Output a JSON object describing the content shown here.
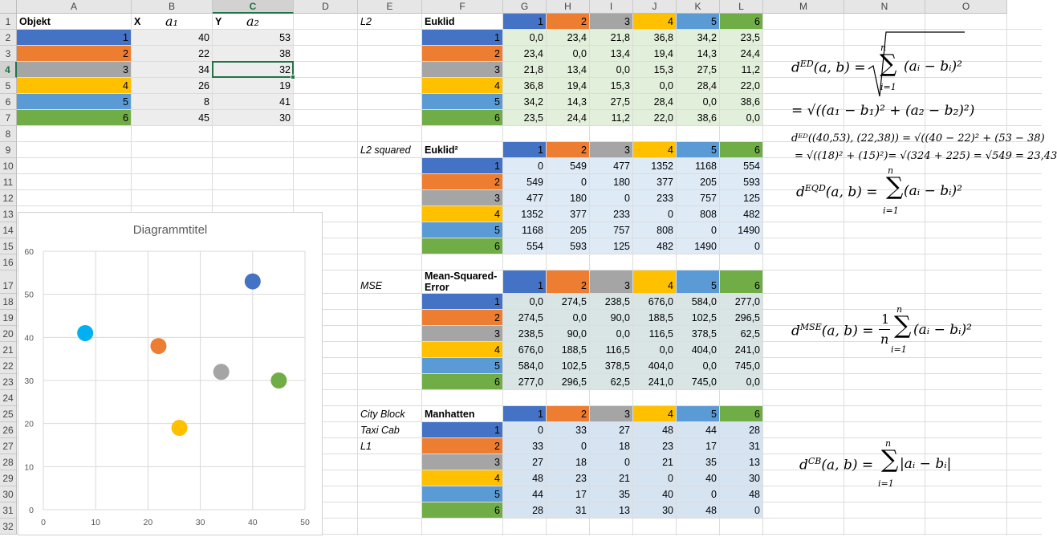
{
  "columns": [
    "A",
    "B",
    "C",
    "D",
    "E",
    "F",
    "G",
    "H",
    "I",
    "J",
    "K",
    "L",
    "M",
    "N",
    "O"
  ],
  "rows": [
    "1",
    "2",
    "3",
    "4",
    "5",
    "6",
    "7",
    "8",
    "9",
    "10",
    "11",
    "12",
    "13",
    "14",
    "15",
    "16",
    "17",
    "18",
    "19",
    "20",
    "21",
    "22",
    "23",
    "24",
    "25",
    "26",
    "27",
    "28",
    "29",
    "30",
    "31",
    "32"
  ],
  "selected": {
    "column": "C",
    "row": "4"
  },
  "colors": {
    "c1": "#4472c4",
    "c2": "#ed7d31",
    "c3": "#a5a5a5",
    "c4": "#ffc000",
    "c5": "#5b9bd5",
    "c6": "#70ad47",
    "grey_fill": "#ededed",
    "euklid_fill": "#e2efda",
    "euklid2_fill": "#deebf7",
    "mse_fill": "#d9e5e5",
    "manhattan_fill": "#d6e4f2",
    "selection": "#217346"
  },
  "objects_table": {
    "header": {
      "objekt": "Objekt",
      "x": "X",
      "a1": "a₁",
      "y": "Y",
      "a2": "a₂"
    },
    "rows": [
      {
        "id": "1",
        "x": "40",
        "y": "53"
      },
      {
        "id": "2",
        "x": "22",
        "y": "38"
      },
      {
        "id": "3",
        "x": "34",
        "y": "32"
      },
      {
        "id": "4",
        "x": "26",
        "y": "19"
      },
      {
        "id": "5",
        "x": "8",
        "y": "41"
      },
      {
        "id": "6",
        "x": "45",
        "y": "30"
      }
    ]
  },
  "matrices": [
    {
      "key": "euklid",
      "label": "L2",
      "extra_labels": [],
      "title": "Euklid",
      "headers": [
        "1",
        "2",
        "3",
        "4",
        "5",
        "6"
      ],
      "values": [
        [
          "0,0",
          "23,4",
          "21,8",
          "36,8",
          "34,2",
          "23,5"
        ],
        [
          "23,4",
          "0,0",
          "13,4",
          "19,4",
          "14,3",
          "24,4"
        ],
        [
          "21,8",
          "13,4",
          "0,0",
          "15,3",
          "27,5",
          "11,2"
        ],
        [
          "36,8",
          "19,4",
          "15,3",
          "0,0",
          "28,4",
          "22,0"
        ],
        [
          "34,2",
          "14,3",
          "27,5",
          "28,4",
          "0,0",
          "38,6"
        ],
        [
          "23,5",
          "24,4",
          "11,2",
          "22,0",
          "38,6",
          "0,0"
        ]
      ]
    },
    {
      "key": "euklid2",
      "label": "L2 squared",
      "extra_labels": [],
      "title": "Euklid²",
      "headers": [
        "1",
        "2",
        "3",
        "4",
        "5",
        "6"
      ],
      "values": [
        [
          "0",
          "549",
          "477",
          "1352",
          "1168",
          "554"
        ],
        [
          "549",
          "0",
          "180",
          "377",
          "205",
          "593"
        ],
        [
          "477",
          "180",
          "0",
          "233",
          "757",
          "125"
        ],
        [
          "1352",
          "377",
          "233",
          "0",
          "808",
          "482"
        ],
        [
          "1168",
          "205",
          "757",
          "808",
          "0",
          "1490"
        ],
        [
          "554",
          "593",
          "125",
          "482",
          "1490",
          "0"
        ]
      ]
    },
    {
      "key": "mse",
      "label": "MSE",
      "extra_labels": [],
      "title": "Mean-Squared-",
      "title2": "Error",
      "headers": [
        "1",
        "2",
        "3",
        "4",
        "5",
        "6"
      ],
      "values": [
        [
          "0,0",
          "274,5",
          "238,5",
          "676,0",
          "584,0",
          "277,0"
        ],
        [
          "274,5",
          "0,0",
          "90,0",
          "188,5",
          "102,5",
          "296,5"
        ],
        [
          "238,5",
          "90,0",
          "0,0",
          "116,5",
          "378,5",
          "62,5"
        ],
        [
          "676,0",
          "188,5",
          "116,5",
          "0,0",
          "404,0",
          "241,0"
        ],
        [
          "584,0",
          "102,5",
          "378,5",
          "404,0",
          "0,0",
          "745,0"
        ],
        [
          "277,0",
          "296,5",
          "62,5",
          "241,0",
          "745,0",
          "0,0"
        ]
      ]
    },
    {
      "key": "manhattan",
      "label": "City Block",
      "extra_labels": [
        "Taxi Cab",
        "L1"
      ],
      "title": "Manhatten",
      "headers": [
        "1",
        "2",
        "3",
        "4",
        "5",
        "6"
      ],
      "values": [
        [
          "0",
          "33",
          "27",
          "48",
          "44",
          "28"
        ],
        [
          "33",
          "0",
          "18",
          "23",
          "17",
          "31"
        ],
        [
          "27",
          "18",
          "0",
          "21",
          "35",
          "13"
        ],
        [
          "48",
          "23",
          "21",
          "0",
          "40",
          "30"
        ],
        [
          "44",
          "17",
          "35",
          "40",
          "0",
          "48"
        ],
        [
          "28",
          "31",
          "13",
          "30",
          "48",
          "0"
        ]
      ]
    }
  ],
  "formulas": {
    "ed_lhs": "d",
    "ed_sup": "ED",
    "ed_args": "(a, b) =",
    "ed_sum_top": "n",
    "ed_sum_bottom": "i=1",
    "ed_term": "(aᵢ − bᵢ)²",
    "ed_expand": "= √((a₁ − b₁)² + (a₂ − b₂)²)",
    "ed_example1": "dᴱᴰ((40,53), (22,38)) = √((40 − 22)² + (53 − 38)",
    "ed_example2": "= √((18)² + (15)²)= √(324 + 225) = √549 = 23,43",
    "eqd_lhs": "d",
    "eqd_sup": "EQD",
    "eqd_args": "(a, b) =",
    "eqd_sum_top": "n",
    "eqd_sum_bottom": "i=1",
    "eqd_term": "(aᵢ − bᵢ)²",
    "mse_lhs": "d",
    "mse_sup": "MSE",
    "mse_args": "(a, b) =",
    "mse_frac_top": "1",
    "mse_frac_bottom": "n",
    "mse_sum_top": "n",
    "mse_sum_bottom": "i=1",
    "mse_term": "(aᵢ − bᵢ)²",
    "cb_lhs": "d",
    "cb_sup": "CB",
    "cb_args": "(a, b) =",
    "cb_sum_top": "n",
    "cb_sum_bottom": "i=1",
    "cb_term": "|aᵢ − bᵢ|"
  },
  "chart_data": {
    "type": "scatter",
    "title": "Diagrammtitel",
    "xlabel": "",
    "ylabel": "",
    "xlim": [
      0,
      50
    ],
    "ylim": [
      0,
      60
    ],
    "xticks": [
      "0",
      "10",
      "20",
      "30",
      "40",
      "50"
    ],
    "yticks": [
      "0",
      "10",
      "20",
      "30",
      "40",
      "50",
      "60"
    ],
    "grid": true,
    "points": [
      {
        "id": "1",
        "x": 40,
        "y": 53,
        "color": "#4472c4"
      },
      {
        "id": "2",
        "x": 22,
        "y": 38,
        "color": "#ed7d31"
      },
      {
        "id": "3",
        "x": 34,
        "y": 32,
        "color": "#a5a5a5"
      },
      {
        "id": "4",
        "x": 26,
        "y": 19,
        "color": "#ffc000"
      },
      {
        "id": "5",
        "x": 8,
        "y": 41,
        "color": "#00b0f0"
      },
      {
        "id": "6",
        "x": 45,
        "y": 30,
        "color": "#70ad47"
      }
    ]
  }
}
